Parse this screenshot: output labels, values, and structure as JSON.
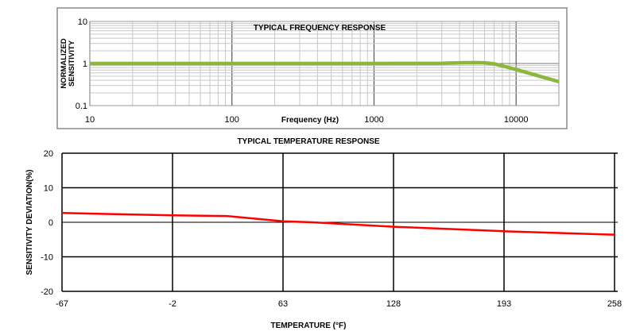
{
  "chart_data": [
    {
      "type": "line",
      "title": "TYPICAL FREQUENCY RESPONSE",
      "xlabel": "Frequency (Hz)",
      "ylabel": [
        "NORMALIZED",
        "SENSITIVITY"
      ],
      "xscale": "log",
      "yscale": "log",
      "xlim": [
        10,
        20000
      ],
      "ylim": [
        0.1,
        10
      ],
      "xticks": [
        "10",
        "100",
        "1000",
        "10000"
      ],
      "xtick_values": [
        10,
        100,
        1000,
        10000
      ],
      "yticks": [
        "10",
        "1",
        "0.1"
      ],
      "ytick_values": [
        10,
        1,
        0.1
      ],
      "grid": true,
      "series": [
        {
          "name": "sensitivity",
          "color": "#8db63c",
          "x": [
            10,
            100,
            1000,
            3000,
            4000,
            5000,
            6000,
            7000,
            8000,
            10000,
            14000,
            20000
          ],
          "y": [
            1.0,
            1.0,
            1.0,
            1.01,
            1.04,
            1.05,
            1.04,
            0.98,
            0.88,
            0.72,
            0.52,
            0.37
          ]
        }
      ]
    },
    {
      "type": "line",
      "title": "TYPICAL TEMPERATURE RESPONSE",
      "xlabel": "TEMPERATURE (°F)",
      "ylabel": "SENSITIVITY DEVIATION(%)",
      "xlim": [
        -67,
        258
      ],
      "ylim": [
        -20,
        20
      ],
      "xticks": [
        "-67",
        "-2",
        "63",
        "128",
        "193",
        "258"
      ],
      "xtick_values": [
        -67,
        -2,
        63,
        128,
        193,
        258
      ],
      "yticks": [
        "20",
        "10",
        "0",
        "-10",
        "-20"
      ],
      "ytick_values": [
        20,
        10,
        0,
        -10,
        -20
      ],
      "grid": true,
      "series": [
        {
          "name": "deviation",
          "color": "#ff0000",
          "x": [
            -67,
            -2,
            30,
            63,
            80,
            128,
            193,
            258
          ],
          "y": [
            2.7,
            2.0,
            1.8,
            0.3,
            0.0,
            -1.3,
            -2.6,
            -3.6
          ]
        }
      ]
    }
  ]
}
